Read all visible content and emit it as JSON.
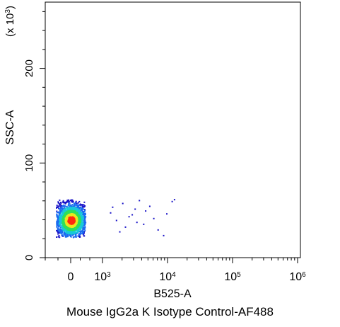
{
  "chart_data": {
    "type": "scatter",
    "subtype": "flow-cytometry-density-dot-plot",
    "title": "Mouse IgG2a K Isotype Control-AF488",
    "xlabel": "B525-A",
    "ylabel": "SSC-A",
    "y_multiplier_label": {
      "prefix": "(x 10",
      "exp": "3",
      "suffix": ")"
    },
    "x_scale": "biexponential",
    "x_ticks": [
      {
        "base": "0",
        "exp": "",
        "value": 0
      },
      {
        "base": "10",
        "exp": "3",
        "value": 1000
      },
      {
        "base": "10",
        "exp": "4",
        "value": 10000
      },
      {
        "base": "10",
        "exp": "5",
        "value": 100000
      },
      {
        "base": "10",
        "exp": "6",
        "value": 1000000
      }
    ],
    "y_scale": "linear",
    "y_ticks": [
      0,
      100,
      200
    ],
    "ylim": [
      0,
      270
    ],
    "grid": false,
    "color_scale": [
      "#1a14c8",
      "#1a6cf0",
      "#19c8d8",
      "#2ee05a",
      "#e8e820",
      "#ff2a10"
    ],
    "population": {
      "center": {
        "x": 0,
        "y": 40
      },
      "x_range": [
        -250,
        450
      ],
      "y_range": [
        22,
        62
      ],
      "peak_color": "#ff2a10"
    },
    "sparse_events": [
      {
        "x": 1300,
        "y": 48
      },
      {
        "x": 1600,
        "y": 40
      },
      {
        "x": 2000,
        "y": 58
      },
      {
        "x": 2200,
        "y": 33
      },
      {
        "x": 2800,
        "y": 46
      },
      {
        "x": 3100,
        "y": 52
      },
      {
        "x": 3600,
        "y": 61
      },
      {
        "x": 4200,
        "y": 36
      },
      {
        "x": 5200,
        "y": 55
      },
      {
        "x": 6000,
        "y": 42
      },
      {
        "x": 7000,
        "y": 30
      },
      {
        "x": 8500,
        "y": 24
      },
      {
        "x": 9500,
        "y": 47
      },
      {
        "x": 11500,
        "y": 60
      },
      {
        "x": 12500,
        "y": 62
      },
      {
        "x": 1800,
        "y": 28
      },
      {
        "x": 2500,
        "y": 44
      },
      {
        "x": 4500,
        "y": 50
      },
      {
        "x": 1400,
        "y": 54
      },
      {
        "x": 3300,
        "y": 38
      }
    ]
  }
}
